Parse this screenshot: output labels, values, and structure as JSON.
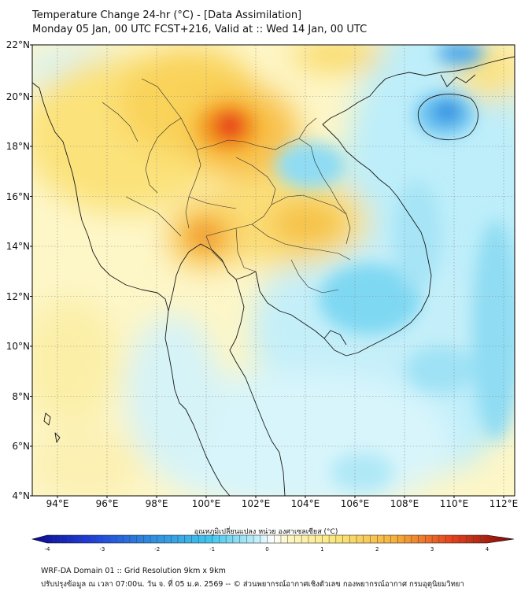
{
  "header": {
    "title_line1": "Temperature Change 24-hr (°C) - [Data Assimilation]",
    "title_line2": "Monday 05 Jan, 00 UTC FCST+216, Valid at :: Wed 14 Jan, 00 UTC"
  },
  "map": {
    "lat_labels": [
      "22°N",
      "20°N",
      "18°N",
      "16°N",
      "14°N",
      "12°N",
      "10°N",
      "8°N",
      "6°N",
      "4°N"
    ],
    "lon_labels": [
      "94°E",
      "96°E",
      "98°E",
      "100°E",
      "102°E",
      "104°E",
      "106°E",
      "108°E",
      "110°E",
      "112°E"
    ]
  },
  "colorbar": {
    "label": "อุณหภูมิเปลี่ยนแปลง หน่วย องศาเซลเซียส (°C)",
    "ticks": [
      "-4",
      "-3",
      "-2",
      "-1",
      "0",
      "1",
      "2",
      "3",
      "4"
    ],
    "min": -4,
    "max": 4
  },
  "footer": {
    "line1": "WRF-DA Domain 01 :: Grid Resolution 9km x 9km",
    "line2": "ปรับปรุงข้อมูล ณ เวลา 07:00น. วัน จ. ที่ 05 ม.ค. 2569 -- © ส่วนพยากรณ์อากาศเชิงตัวเลข กองพยากรณ์อากาศ กรมอุตุนิยมวิทยา"
  },
  "colors": {
    "warm_light": "#fdf3b0",
    "warm_mid": "#fbd34a",
    "warm_hot": "#f39a1e",
    "warm_peak": "#e8421d",
    "cool_light": "#c8f1fb",
    "cool_mid": "#74d7f2",
    "cool_deep": "#2f8fe0"
  }
}
